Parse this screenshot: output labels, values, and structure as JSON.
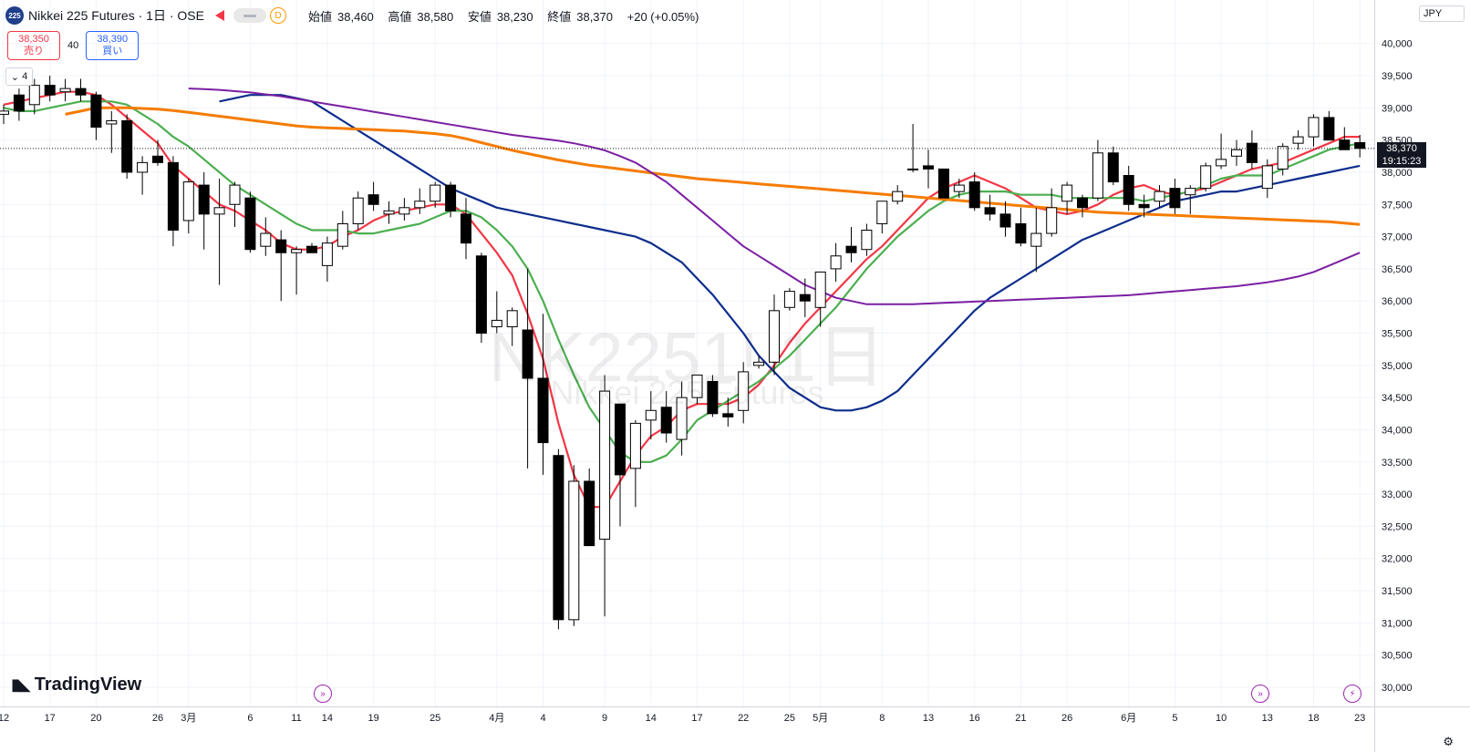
{
  "header": {
    "logo_text": "225",
    "symbol": "Nikkei 225 Futures",
    "interval": "1日",
    "exchange": "OSE",
    "d_badge": "D",
    "ohlc": {
      "open_label": "始値",
      "open": "38,460",
      "high_label": "高値",
      "high": "38,580",
      "low_label": "安値",
      "low": "38,230",
      "close_label": "終値",
      "close": "38,370",
      "change": "+20 (+0.05%)"
    }
  },
  "trade": {
    "sell_price": "38,350",
    "sell_label": "売り",
    "spread": "40",
    "buy_price": "38,390",
    "buy_label": "買い"
  },
  "collapse_label": "4",
  "watermark": {
    "line1": "NK2251! 1日",
    "line2": "Nikkei 225 Futures"
  },
  "brand": "TradingView",
  "currency": "JPY",
  "last_price_label": "38,370",
  "countdown": "19:15:23",
  "colors": {
    "up_body": "#ffffff",
    "down_body": "#000000",
    "wick": "#000000",
    "ma_red": "#f23645",
    "ma_green": "#4caf50",
    "ma_navy": "#0d2d8c",
    "ma_orange": "#f57c00",
    "ma_purple": "#7b1fa2",
    "grid": "#f0f3fa",
    "event_icon": "#9c27b0"
  },
  "icons": [
    "event-arrow-icon",
    "lightning-icon",
    "gear-icon"
  ],
  "chart_data": {
    "type": "candlestick",
    "y_ticks": [
      30000,
      30500,
      31000,
      31500,
      32000,
      32500,
      33000,
      33500,
      34000,
      34500,
      35000,
      35500,
      36000,
      36500,
      37000,
      37500,
      38000,
      38500,
      39000,
      39500,
      40000
    ],
    "y_tick_labels": [
      "30,000",
      "30,500",
      "31,000",
      "31,500",
      "32,000",
      "32,500",
      "33,000",
      "33,500",
      "34,000",
      "34,500",
      "35,000",
      "35,500",
      "36,000",
      "36,500",
      "37,000",
      "37,500",
      "38,000",
      "38,500",
      "39,000",
      "39,500",
      "40,000"
    ],
    "ylim": [
      29800,
      40300
    ],
    "x_labels": [
      "12",
      "17",
      "20",
      "26",
      "3月",
      "6",
      "11",
      "14",
      "19",
      "25",
      "4月",
      "4",
      "9",
      "14",
      "17",
      "22",
      "25",
      "5月",
      "8",
      "13",
      "16",
      "21",
      "26",
      "6月",
      "5",
      "10",
      "13",
      "18",
      "23"
    ],
    "x_label_index": [
      0,
      3,
      6,
      10,
      12,
      16,
      19,
      21,
      24,
      28,
      32,
      35,
      39,
      42,
      45,
      48,
      51,
      53,
      57,
      60,
      63,
      66,
      69,
      73,
      76,
      79,
      82,
      85,
      88
    ],
    "candles": [
      {
        "o": 38900,
        "h": 39050,
        "l": 38750,
        "c": 38950
      },
      {
        "o": 39200,
        "h": 39300,
        "l": 38800,
        "c": 38950
      },
      {
        "o": 39050,
        "h": 39450,
        "l": 38900,
        "c": 39350
      },
      {
        "o": 39350,
        "h": 39500,
        "l": 39100,
        "c": 39200
      },
      {
        "o": 39250,
        "h": 39450,
        "l": 39100,
        "c": 39300
      },
      {
        "o": 39300,
        "h": 39450,
        "l": 39100,
        "c": 39200
      },
      {
        "o": 39200,
        "h": 39250,
        "l": 38500,
        "c": 38700
      },
      {
        "o": 38750,
        "h": 38950,
        "l": 38300,
        "c": 38800
      },
      {
        "o": 38800,
        "h": 38900,
        "l": 37900,
        "c": 38000
      },
      {
        "o": 38000,
        "h": 38250,
        "l": 37650,
        "c": 38150
      },
      {
        "o": 38250,
        "h": 38500,
        "l": 38100,
        "c": 38150
      },
      {
        "o": 38150,
        "h": 38250,
        "l": 36850,
        "c": 37100
      },
      {
        "o": 37250,
        "h": 37900,
        "l": 37050,
        "c": 37850
      },
      {
        "o": 37800,
        "h": 38000,
        "l": 36800,
        "c": 37350
      },
      {
        "o": 37350,
        "h": 37900,
        "l": 36250,
        "c": 37450
      },
      {
        "o": 37500,
        "h": 37850,
        "l": 37150,
        "c": 37800
      },
      {
        "o": 37600,
        "h": 37700,
        "l": 36750,
        "c": 36800
      },
      {
        "o": 36850,
        "h": 37300,
        "l": 36700,
        "c": 37050
      },
      {
        "o": 36950,
        "h": 37100,
        "l": 36000,
        "c": 36750
      },
      {
        "o": 36750,
        "h": 36850,
        "l": 36100,
        "c": 36800
      },
      {
        "o": 36850,
        "h": 36900,
        "l": 36800,
        "c": 36750
      },
      {
        "o": 36550,
        "h": 37000,
        "l": 36300,
        "c": 36900
      },
      {
        "o": 36850,
        "h": 37400,
        "l": 36800,
        "c": 37200
      },
      {
        "o": 37200,
        "h": 37700,
        "l": 37100,
        "c": 37600
      },
      {
        "o": 37650,
        "h": 37850,
        "l": 37400,
        "c": 37500
      },
      {
        "o": 37350,
        "h": 37550,
        "l": 37200,
        "c": 37400
      },
      {
        "o": 37350,
        "h": 37600,
        "l": 37250,
        "c": 37450
      },
      {
        "o": 37450,
        "h": 37750,
        "l": 37350,
        "c": 37550
      },
      {
        "o": 37550,
        "h": 37850,
        "l": 37450,
        "c": 37800
      },
      {
        "o": 37800,
        "h": 37850,
        "l": 37300,
        "c": 37400
      },
      {
        "o": 37350,
        "h": 37600,
        "l": 36650,
        "c": 36900
      },
      {
        "o": 36700,
        "h": 36750,
        "l": 35350,
        "c": 35500
      },
      {
        "o": 35600,
        "h": 36150,
        "l": 35500,
        "c": 35700
      },
      {
        "o": 35600,
        "h": 35900,
        "l": 35300,
        "c": 35850
      },
      {
        "o": 35550,
        "h": 36500,
        "l": 33400,
        "c": 34800
      },
      {
        "o": 34800,
        "h": 35800,
        "l": 33300,
        "c": 33800
      },
      {
        "o": 33600,
        "h": 33700,
        "l": 30900,
        "c": 31050
      },
      {
        "o": 31050,
        "h": 33450,
        "l": 30950,
        "c": 33200
      },
      {
        "o": 33200,
        "h": 33400,
        "l": 32200,
        "c": 32200
      },
      {
        "o": 32300,
        "h": 34850,
        "l": 31100,
        "c": 34600
      },
      {
        "o": 34400,
        "h": 34400,
        "l": 32500,
        "c": 33300
      },
      {
        "o": 33400,
        "h": 34150,
        "l": 32800,
        "c": 34100
      },
      {
        "o": 34150,
        "h": 34600,
        "l": 33850,
        "c": 34300
      },
      {
        "o": 34350,
        "h": 34600,
        "l": 33800,
        "c": 33950
      },
      {
        "o": 33850,
        "h": 34750,
        "l": 33600,
        "c": 34500
      },
      {
        "o": 34500,
        "h": 34850,
        "l": 34400,
        "c": 34850
      },
      {
        "o": 34750,
        "h": 34850,
        "l": 34200,
        "c": 34250
      },
      {
        "o": 34250,
        "h": 34500,
        "l": 34050,
        "c": 34200
      },
      {
        "o": 34300,
        "h": 35050,
        "l": 34100,
        "c": 34900
      },
      {
        "o": 35000,
        "h": 35150,
        "l": 34950,
        "c": 35050
      },
      {
        "o": 35050,
        "h": 36100,
        "l": 34850,
        "c": 35850
      },
      {
        "o": 35900,
        "h": 36200,
        "l": 35850,
        "c": 36150
      },
      {
        "o": 36100,
        "h": 36350,
        "l": 35750,
        "c": 36000
      },
      {
        "o": 35900,
        "h": 36450,
        "l": 35600,
        "c": 36450
      },
      {
        "o": 36500,
        "h": 36900,
        "l": 36300,
        "c": 36700
      },
      {
        "o": 36850,
        "h": 37150,
        "l": 36600,
        "c": 36750
      },
      {
        "o": 36800,
        "h": 37200,
        "l": 36700,
        "c": 37100
      },
      {
        "o": 37200,
        "h": 37500,
        "l": 37050,
        "c": 37550
      },
      {
        "o": 37550,
        "h": 37800,
        "l": 37500,
        "c": 37700
      },
      {
        "o": 38050,
        "h": 38750,
        "l": 38000,
        "c": 38050
      },
      {
        "o": 38100,
        "h": 38350,
        "l": 37750,
        "c": 38050
      },
      {
        "o": 38050,
        "h": 38050,
        "l": 37600,
        "c": 37600
      },
      {
        "o": 37700,
        "h": 37900,
        "l": 37600,
        "c": 37800
      },
      {
        "o": 37850,
        "h": 38000,
        "l": 37400,
        "c": 37450
      },
      {
        "o": 37450,
        "h": 37650,
        "l": 37250,
        "c": 37350
      },
      {
        "o": 37350,
        "h": 37550,
        "l": 37000,
        "c": 37150
      },
      {
        "o": 37200,
        "h": 37450,
        "l": 36850,
        "c": 36900
      },
      {
        "o": 36850,
        "h": 37450,
        "l": 36450,
        "c": 37050
      },
      {
        "o": 37050,
        "h": 37750,
        "l": 37000,
        "c": 37450
      },
      {
        "o": 37550,
        "h": 37850,
        "l": 37350,
        "c": 37800
      },
      {
        "o": 37600,
        "h": 37650,
        "l": 37300,
        "c": 37450
      },
      {
        "o": 37600,
        "h": 38500,
        "l": 37550,
        "c": 38300
      },
      {
        "o": 38300,
        "h": 38400,
        "l": 37800,
        "c": 37850
      },
      {
        "o": 37950,
        "h": 38100,
        "l": 37400,
        "c": 37500
      },
      {
        "o": 37500,
        "h": 37650,
        "l": 37300,
        "c": 37450
      },
      {
        "o": 37550,
        "h": 37800,
        "l": 37450,
        "c": 37700
      },
      {
        "o": 37750,
        "h": 37900,
        "l": 37350,
        "c": 37450
      },
      {
        "o": 37650,
        "h": 37800,
        "l": 37350,
        "c": 37750
      },
      {
        "o": 37750,
        "h": 38150,
        "l": 37700,
        "c": 38100
      },
      {
        "o": 38100,
        "h": 38600,
        "l": 38050,
        "c": 38200
      },
      {
        "o": 38250,
        "h": 38500,
        "l": 38100,
        "c": 38350
      },
      {
        "o": 38450,
        "h": 38650,
        "l": 38050,
        "c": 38150
      },
      {
        "o": 37750,
        "h": 38200,
        "l": 37600,
        "c": 38100
      },
      {
        "o": 38050,
        "h": 38450,
        "l": 37950,
        "c": 38400
      },
      {
        "o": 38450,
        "h": 38650,
        "l": 38350,
        "c": 38550
      },
      {
        "o": 38550,
        "h": 38900,
        "l": 38400,
        "c": 38850
      },
      {
        "o": 38850,
        "h": 38950,
        "l": 38550,
        "c": 38500
      },
      {
        "o": 38500,
        "h": 38700,
        "l": 38350,
        "c": 38350
      },
      {
        "o": 38460,
        "h": 38580,
        "l": 38230,
        "c": 38370
      }
    ],
    "moving_averages": [
      {
        "color": "#f23645",
        "values": [
          39050,
          39100,
          39150,
          39200,
          39250,
          39250,
          39200,
          39050,
          38850,
          38650,
          38450,
          38100,
          37900,
          37700,
          37500,
          37400,
          37250,
          37100,
          36900,
          36800,
          36800,
          36850,
          37000,
          37100,
          37250,
          37350,
          37400,
          37450,
          37500,
          37500,
          37350,
          37050,
          36750,
          36400,
          35800,
          35100,
          34100,
          33300,
          32800,
          32800,
          33200,
          33600,
          33900,
          34050,
          34300,
          34400,
          34400,
          34400,
          34500,
          34700,
          35000,
          35350,
          35650,
          35900,
          36150,
          36400,
          36650,
          36850,
          37100,
          37350,
          37600,
          37750,
          37850,
          37950,
          37850,
          37750,
          37600,
          37450,
          37400,
          37350,
          37400,
          37500,
          37650,
          37750,
          37800,
          37700,
          37650,
          37700,
          37750,
          37850,
          37950,
          38050,
          38100,
          38150,
          38250,
          38350,
          38450,
          38550,
          38550
        ]
      },
      {
        "color": "#4caf50",
        "values": [
          39000,
          38950,
          38950,
          39000,
          39050,
          39100,
          39100,
          39100,
          39050,
          38900,
          38750,
          38550,
          38400,
          38200,
          38000,
          37800,
          37650,
          37500,
          37350,
          37200,
          37100,
          37100,
          37100,
          37050,
          37050,
          37100,
          37150,
          37200,
          37300,
          37400,
          37400,
          37300,
          37100,
          36850,
          36500,
          36000,
          35400,
          34850,
          34350,
          34000,
          33650,
          33500,
          33500,
          33600,
          33850,
          34150,
          34300,
          34450,
          34600,
          34750,
          34950,
          35150,
          35400,
          35650,
          35900,
          36200,
          36500,
          36750,
          37000,
          37200,
          37400,
          37550,
          37650,
          37700,
          37700,
          37700,
          37650,
          37650,
          37650,
          37600,
          37600,
          37600,
          37600,
          37600,
          37550,
          37600,
          37650,
          37700,
          37800,
          37900,
          37950,
          37950,
          37950,
          38050,
          38150,
          38250,
          38350,
          38400,
          38450
        ]
      },
      {
        "color": "#0d2d8c",
        "values": [
          39100,
          39150,
          39200,
          39200,
          39200,
          39150,
          39100,
          38950,
          38800,
          38650,
          38500,
          38350,
          38200,
          38050,
          37900,
          37750,
          37650,
          37550,
          37450,
          37400,
          37350,
          37300,
          37250,
          37200,
          37150,
          37100,
          37050,
          37000,
          36900,
          36750,
          36600,
          36350,
          36100,
          35800,
          35500,
          35150,
          34900,
          34650,
          34500,
          34350,
          34300,
          34300,
          34350,
          34450,
          34600,
          34850,
          35100,
          35350,
          35600,
          35850,
          36050,
          36200,
          36350,
          36500,
          36650,
          36800,
          36950,
          37050,
          37150,
          37250,
          37350,
          37450,
          37550,
          37600,
          37650,
          37700,
          37700,
          37750,
          37800,
          37850,
          37900,
          37950,
          38000,
          38050,
          38100
        ]
      },
      {
        "color": "#f57c00",
        "values": [
          38900,
          38950,
          39000,
          39000,
          39000,
          38990,
          38980,
          38960,
          38930,
          38900,
          38870,
          38840,
          38810,
          38780,
          38750,
          38720,
          38700,
          38690,
          38680,
          38670,
          38660,
          38650,
          38640,
          38620,
          38600,
          38570,
          38520,
          38460,
          38400,
          38340,
          38290,
          38240,
          38190,
          38150,
          38110,
          38080,
          38050,
          38020,
          37990,
          37960,
          37930,
          37900,
          37880,
          37860,
          37840,
          37820,
          37800,
          37780,
          37760,
          37740,
          37720,
          37700,
          37680,
          37660,
          37640,
          37620,
          37600,
          37580,
          37560,
          37540,
          37520,
          37500,
          37480,
          37460,
          37440,
          37420,
          37400,
          37380,
          37370,
          37360,
          37350,
          37340,
          37330,
          37320,
          37310,
          37300,
          37290,
          37280,
          37270,
          37260,
          37250,
          37240,
          37230,
          37210,
          37190
        ]
      },
      {
        "color": "#7b1fa2",
        "values": [
          39300,
          39290,
          39280,
          39260,
          39240,
          39210,
          39180,
          39140,
          39100,
          39060,
          39020,
          38980,
          38940,
          38900,
          38860,
          38820,
          38780,
          38740,
          38700,
          38660,
          38620,
          38580,
          38550,
          38520,
          38490,
          38450,
          38400,
          38340,
          38250,
          38150,
          38000,
          37850,
          37650,
          37450,
          37250,
          37050,
          36850,
          36700,
          36550,
          36400,
          36250,
          36150,
          36050,
          36000,
          35950,
          35950,
          35950,
          35950,
          35960,
          35970,
          35980,
          35990,
          36000,
          36010,
          36020,
          36030,
          36040,
          36050,
          36060,
          36070,
          36080,
          36090,
          36110,
          36130,
          36150,
          36170,
          36190,
          36210,
          36230,
          36260,
          36290,
          36330,
          36380,
          36450,
          36550,
          36650,
          36750
        ]
      }
    ]
  }
}
